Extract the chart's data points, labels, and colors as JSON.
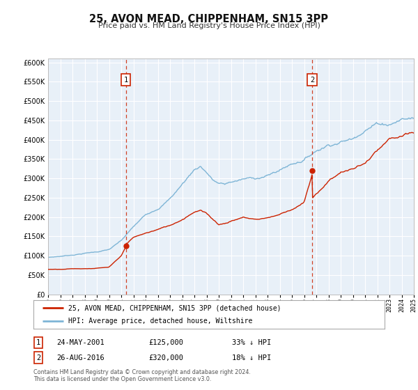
{
  "title": "25, AVON MEAD, CHIPPENHAM, SN15 3PP",
  "subtitle": "Price paid vs. HM Land Registry's House Price Index (HPI)",
  "y_ticks": [
    0,
    50000,
    100000,
    150000,
    200000,
    250000,
    300000,
    350000,
    400000,
    450000,
    500000,
    550000,
    600000
  ],
  "hpi_color": "#7eb5d6",
  "price_color": "#cc2200",
  "marker_color": "#cc2200",
  "grid_color": "#cccccc",
  "bg_color": "#e8f0f8",
  "event1_date": 2001.38,
  "event1_price": 125000,
  "event2_date": 2016.65,
  "event2_price": 320000,
  "legend_label_price": "25, AVON MEAD, CHIPPENHAM, SN15 3PP (detached house)",
  "legend_label_hpi": "HPI: Average price, detached house, Wiltshire",
  "footer1": "Contains HM Land Registry data © Crown copyright and database right 2024.",
  "footer2": "This data is licensed under the Open Government Licence v3.0.",
  "key_years_hpi": [
    1995,
    1996,
    1997,
    1998,
    1999,
    2000,
    2001,
    2002,
    2003,
    2004,
    2005,
    2006,
    2007,
    2007.5,
    2008,
    2008.5,
    2009,
    2009.5,
    2010,
    2011,
    2012,
    2013,
    2014,
    2015,
    2016,
    2017,
    2018,
    2019,
    2020,
    2021,
    2022,
    2023,
    2024,
    2024.9
  ],
  "key_vals_hpi": [
    96000,
    99000,
    103000,
    108000,
    112000,
    118000,
    140000,
    175000,
    205000,
    225000,
    252000,
    290000,
    330000,
    340000,
    325000,
    305000,
    295000,
    292000,
    298000,
    305000,
    308000,
    315000,
    330000,
    348000,
    362000,
    388000,
    408000,
    420000,
    428000,
    462000,
    480000,
    482000,
    498000,
    502000
  ],
  "key_years_price": [
    1995,
    1996,
    1997,
    1998,
    1999,
    2000,
    2001.0,
    2001.38,
    2001.39,
    2002,
    2003,
    2004,
    2005,
    2006,
    2007,
    2007.5,
    2008,
    2008.5,
    2009,
    2009.5,
    2010,
    2011,
    2012,
    2013,
    2014,
    2015,
    2016.0,
    2016.65,
    2016.66,
    2017,
    2018,
    2019,
    2020,
    2021,
    2022,
    2023,
    2024,
    2024.9
  ],
  "key_vals_price": [
    65000,
    66000,
    68000,
    68500,
    70000,
    72000,
    100000,
    125000,
    130000,
    148000,
    158000,
    168000,
    178000,
    195000,
    218000,
    222000,
    212000,
    198000,
    185000,
    188000,
    195000,
    205000,
    200000,
    205000,
    215000,
    230000,
    248000,
    320000,
    256000,
    268000,
    305000,
    330000,
    338000,
    352000,
    382000,
    407000,
    412000,
    415000
  ]
}
